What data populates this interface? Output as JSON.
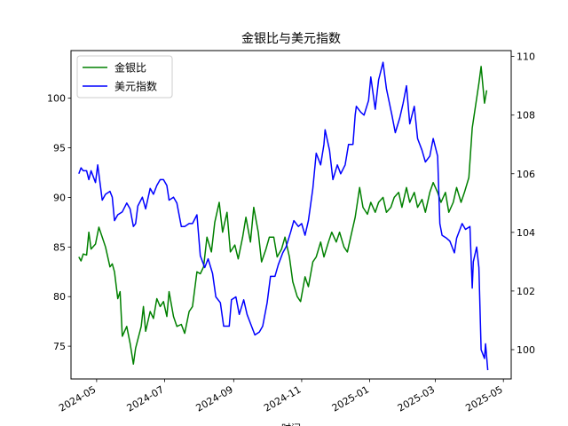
{
  "chart_data": {
    "type": "line",
    "title": "金银比与美元指数",
    "xlabel": "时间",
    "x_ticks": [
      "2024-05",
      "2024-07",
      "2024-09",
      "2024-11",
      "2025-01",
      "2025-03",
      "2025-05"
    ],
    "x_range": [
      "2024-04-08",
      "2025-05-08"
    ],
    "y_left": {
      "ticks": [
        75,
        80,
        85,
        90,
        95,
        100
      ],
      "range": [
        71.7,
        104.8
      ]
    },
    "y_right": {
      "ticks": [
        100,
        102,
        104,
        106,
        108,
        110
      ],
      "range": [
        99.0,
        110.2
      ]
    },
    "grid": false,
    "legend": "top-left",
    "series": [
      {
        "name": "金银比",
        "color": "#008000",
        "axis": "left",
        "points": [
          [
            "2024-04-15",
            84.0
          ],
          [
            "2024-04-17",
            83.6
          ],
          [
            "2024-04-19",
            84.3
          ],
          [
            "2024-04-22",
            84.2
          ],
          [
            "2024-04-24",
            86.5
          ],
          [
            "2024-04-26",
            84.8
          ],
          [
            "2024-04-30",
            85.3
          ],
          [
            "2024-05-03",
            87.0
          ],
          [
            "2024-05-06",
            86.0
          ],
          [
            "2024-05-09",
            85.0
          ],
          [
            "2024-05-13",
            83.0
          ],
          [
            "2024-05-15",
            83.3
          ],
          [
            "2024-05-17",
            82.5
          ],
          [
            "2024-05-20",
            79.8
          ],
          [
            "2024-05-22",
            80.5
          ],
          [
            "2024-05-24",
            76.0
          ],
          [
            "2024-05-28",
            77.0
          ],
          [
            "2024-05-31",
            75.3
          ],
          [
            "2024-06-03",
            73.2
          ],
          [
            "2024-06-05",
            74.8
          ],
          [
            "2024-06-10",
            77.0
          ],
          [
            "2024-06-12",
            79.0
          ],
          [
            "2024-06-14",
            76.5
          ],
          [
            "2024-06-18",
            78.5
          ],
          [
            "2024-06-21",
            77.8
          ],
          [
            "2024-06-24",
            79.8
          ],
          [
            "2024-06-27",
            79.0
          ],
          [
            "2024-06-30",
            79.5
          ],
          [
            "2024-07-03",
            78.0
          ],
          [
            "2024-07-05",
            80.5
          ],
          [
            "2024-07-09",
            78.0
          ],
          [
            "2024-07-12",
            77.0
          ],
          [
            "2024-07-16",
            77.2
          ],
          [
            "2024-07-19",
            76.3
          ],
          [
            "2024-07-23",
            78.5
          ],
          [
            "2024-07-26",
            79.0
          ],
          [
            "2024-07-30",
            82.5
          ],
          [
            "2024-08-02",
            82.3
          ],
          [
            "2024-08-05",
            83.0
          ],
          [
            "2024-08-08",
            86.0
          ],
          [
            "2024-08-12",
            84.5
          ],
          [
            "2024-08-15",
            87.5
          ],
          [
            "2024-08-19",
            89.5
          ],
          [
            "2024-08-22",
            86.5
          ],
          [
            "2024-08-26",
            88.5
          ],
          [
            "2024-08-29",
            84.5
          ],
          [
            "2024-09-02",
            85.2
          ],
          [
            "2024-09-05",
            83.8
          ],
          [
            "2024-09-09",
            86.0
          ],
          [
            "2024-09-12",
            88.0
          ],
          [
            "2024-09-16",
            85.5
          ],
          [
            "2024-09-19",
            89.0
          ],
          [
            "2024-09-23",
            86.5
          ],
          [
            "2024-09-26",
            83.5
          ],
          [
            "2024-09-30",
            84.8
          ],
          [
            "2024-10-03",
            86.0
          ],
          [
            "2024-10-07",
            86.0
          ],
          [
            "2024-10-10",
            84.0
          ],
          [
            "2024-10-14",
            84.8
          ],
          [
            "2024-10-17",
            86.0
          ],
          [
            "2024-10-21",
            84.0
          ],
          [
            "2024-10-24",
            81.5
          ],
          [
            "2024-10-28",
            80.0
          ],
          [
            "2024-10-31",
            79.5
          ],
          [
            "2024-11-04",
            82.0
          ],
          [
            "2024-11-07",
            81.0
          ],
          [
            "2024-11-11",
            83.5
          ],
          [
            "2024-11-14",
            84.0
          ],
          [
            "2024-11-18",
            85.5
          ],
          [
            "2024-11-21",
            84.0
          ],
          [
            "2024-11-25",
            85.5
          ],
          [
            "2024-11-28",
            86.5
          ],
          [
            "2024-12-02",
            85.5
          ],
          [
            "2024-12-05",
            86.5
          ],
          [
            "2024-12-09",
            85.0
          ],
          [
            "2024-12-12",
            84.5
          ],
          [
            "2024-12-16",
            86.5
          ],
          [
            "2024-12-19",
            88.0
          ],
          [
            "2024-12-23",
            91.0
          ],
          [
            "2024-12-26",
            89.0
          ],
          [
            "2024-12-30",
            88.3
          ],
          [
            "2025-01-02",
            89.5
          ],
          [
            "2025-01-06",
            88.5
          ],
          [
            "2025-01-09",
            89.5
          ],
          [
            "2025-01-13",
            90.0
          ],
          [
            "2025-01-16",
            88.5
          ],
          [
            "2025-01-20",
            89.0
          ],
          [
            "2025-01-23",
            90.0
          ],
          [
            "2025-01-27",
            90.5
          ],
          [
            "2025-01-30",
            89.0
          ],
          [
            "2025-02-03",
            91.0
          ],
          [
            "2025-02-06",
            89.5
          ],
          [
            "2025-02-10",
            90.5
          ],
          [
            "2025-02-13",
            89.0
          ],
          [
            "2025-02-17",
            89.8
          ],
          [
            "2025-02-20",
            88.5
          ],
          [
            "2025-02-24",
            90.5
          ],
          [
            "2025-02-27",
            91.5
          ],
          [
            "2025-03-03",
            90.5
          ],
          [
            "2025-03-06",
            89.5
          ],
          [
            "2025-03-10",
            90.5
          ],
          [
            "2025-03-13",
            88.5
          ],
          [
            "2025-03-17",
            89.5
          ],
          [
            "2025-03-20",
            91.0
          ],
          [
            "2025-03-24",
            89.5
          ],
          [
            "2025-03-27",
            90.5
          ],
          [
            "2025-03-31",
            92.0
          ],
          [
            "2025-04-03",
            97.0
          ],
          [
            "2025-04-07",
            100.0
          ],
          [
            "2025-04-09",
            101.5
          ],
          [
            "2025-04-11",
            103.2
          ],
          [
            "2025-04-14",
            99.5
          ],
          [
            "2025-04-16",
            100.8
          ]
        ]
      },
      {
        "name": "美元指数",
        "color": "#0000ff",
        "axis": "right",
        "points": [
          [
            "2024-04-15",
            106.0
          ],
          [
            "2024-04-17",
            106.2
          ],
          [
            "2024-04-19",
            106.1
          ],
          [
            "2024-04-22",
            106.1
          ],
          [
            "2024-04-24",
            105.8
          ],
          [
            "2024-04-26",
            106.1
          ],
          [
            "2024-04-30",
            105.7
          ],
          [
            "2024-05-02",
            106.3
          ],
          [
            "2024-05-06",
            105.1
          ],
          [
            "2024-05-09",
            105.3
          ],
          [
            "2024-05-13",
            105.4
          ],
          [
            "2024-05-15",
            105.2
          ],
          [
            "2024-05-17",
            104.4
          ],
          [
            "2024-05-20",
            104.6
          ],
          [
            "2024-05-24",
            104.7
          ],
          [
            "2024-05-28",
            105.0
          ],
          [
            "2024-05-31",
            104.8
          ],
          [
            "2024-06-03",
            104.2
          ],
          [
            "2024-06-05",
            104.3
          ],
          [
            "2024-06-07",
            104.9
          ],
          [
            "2024-06-11",
            105.2
          ],
          [
            "2024-06-14",
            104.8
          ],
          [
            "2024-06-18",
            105.5
          ],
          [
            "2024-06-21",
            105.3
          ],
          [
            "2024-06-24",
            105.6
          ],
          [
            "2024-06-27",
            105.8
          ],
          [
            "2024-06-30",
            105.8
          ],
          [
            "2024-07-03",
            105.6
          ],
          [
            "2024-07-05",
            105.1
          ],
          [
            "2024-07-09",
            105.2
          ],
          [
            "2024-07-12",
            105.0
          ],
          [
            "2024-07-16",
            104.2
          ],
          [
            "2024-07-19",
            104.2
          ],
          [
            "2024-07-23",
            104.3
          ],
          [
            "2024-07-26",
            104.3
          ],
          [
            "2024-07-30",
            104.6
          ],
          [
            "2024-08-02",
            103.2
          ],
          [
            "2024-08-06",
            102.8
          ],
          [
            "2024-08-09",
            103.1
          ],
          [
            "2024-08-13",
            102.6
          ],
          [
            "2024-08-16",
            101.8
          ],
          [
            "2024-08-20",
            101.6
          ],
          [
            "2024-08-23",
            100.8
          ],
          [
            "2024-08-28",
            100.8
          ],
          [
            "2024-08-30",
            101.7
          ],
          [
            "2024-09-03",
            101.8
          ],
          [
            "2024-09-06",
            101.2
          ],
          [
            "2024-09-10",
            101.7
          ],
          [
            "2024-09-13",
            101.2
          ],
          [
            "2024-09-17",
            100.8
          ],
          [
            "2024-09-20",
            100.5
          ],
          [
            "2024-09-24",
            100.6
          ],
          [
            "2024-09-27",
            100.8
          ],
          [
            "2024-10-01",
            101.6
          ],
          [
            "2024-10-04",
            102.5
          ],
          [
            "2024-10-08",
            102.5
          ],
          [
            "2024-10-11",
            102.9
          ],
          [
            "2024-10-15",
            103.3
          ],
          [
            "2024-10-18",
            103.5
          ],
          [
            "2024-10-22",
            104.0
          ],
          [
            "2024-10-25",
            104.4
          ],
          [
            "2024-10-29",
            104.2
          ],
          [
            "2024-11-01",
            104.3
          ],
          [
            "2024-11-04",
            103.9
          ],
          [
            "2024-11-07",
            104.4
          ],
          [
            "2024-11-11",
            105.5
          ],
          [
            "2024-11-14",
            106.7
          ],
          [
            "2024-11-18",
            106.3
          ],
          [
            "2024-11-21",
            107.0
          ],
          [
            "2024-11-22",
            107.5
          ],
          [
            "2024-11-26",
            106.8
          ],
          [
            "2024-11-29",
            105.8
          ],
          [
            "2024-12-03",
            106.3
          ],
          [
            "2024-12-06",
            106.0
          ],
          [
            "2024-12-10",
            106.3
          ],
          [
            "2024-12-13",
            107.0
          ],
          [
            "2024-12-17",
            107.0
          ],
          [
            "2024-12-19",
            108.0
          ],
          [
            "2024-12-20",
            108.3
          ],
          [
            "2024-12-24",
            108.1
          ],
          [
            "2024-12-27",
            108.0
          ],
          [
            "2024-12-31",
            108.5
          ],
          [
            "2025-01-02",
            109.3
          ],
          [
            "2025-01-06",
            108.2
          ],
          [
            "2025-01-09",
            109.2
          ],
          [
            "2025-01-13",
            109.8
          ],
          [
            "2025-01-16",
            108.9
          ],
          [
            "2025-01-21",
            108.0
          ],
          [
            "2025-01-24",
            107.4
          ],
          [
            "2025-01-28",
            107.9
          ],
          [
            "2025-01-31",
            108.4
          ],
          [
            "2025-02-03",
            109.0
          ],
          [
            "2025-02-06",
            107.7
          ],
          [
            "2025-02-10",
            108.3
          ],
          [
            "2025-02-13",
            107.2
          ],
          [
            "2025-02-17",
            106.8
          ],
          [
            "2025-02-20",
            106.4
          ],
          [
            "2025-02-24",
            106.6
          ],
          [
            "2025-02-27",
            107.2
          ],
          [
            "2025-03-03",
            106.6
          ],
          [
            "2025-03-05",
            104.3
          ],
          [
            "2025-03-07",
            103.9
          ],
          [
            "2025-03-11",
            103.8
          ],
          [
            "2025-03-14",
            103.7
          ],
          [
            "2025-03-18",
            103.3
          ],
          [
            "2025-03-20",
            103.8
          ],
          [
            "2025-03-25",
            104.3
          ],
          [
            "2025-03-28",
            104.1
          ],
          [
            "2025-04-01",
            104.2
          ],
          [
            "2025-04-03",
            102.1
          ],
          [
            "2025-04-04",
            103.0
          ],
          [
            "2025-04-07",
            103.5
          ],
          [
            "2025-04-09",
            102.8
          ],
          [
            "2025-04-11",
            100.0
          ],
          [
            "2025-04-14",
            99.7
          ],
          [
            "2025-04-15",
            100.2
          ],
          [
            "2025-04-17",
            99.3
          ]
        ]
      }
    ]
  }
}
